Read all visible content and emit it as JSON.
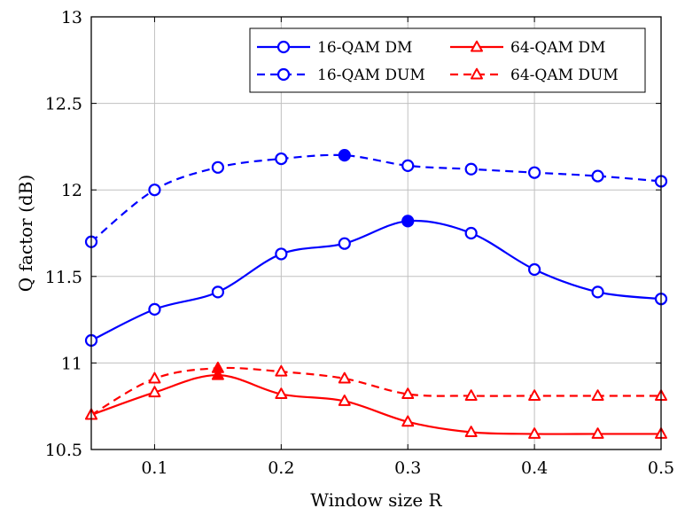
{
  "chart_data": {
    "type": "line",
    "xlabel": "Window size R",
    "ylabel": "Q factor (dB)",
    "xlim": [
      0.05,
      0.5
    ],
    "ylim": [
      10.5,
      13
    ],
    "x_ticks": [
      "0.1",
      "0.2",
      "0.3",
      "0.4",
      "0.5"
    ],
    "y_ticks": [
      "10.5",
      "11",
      "11.5",
      "12",
      "12.5",
      "13"
    ],
    "grid": true,
    "legend_position": "top-right",
    "x": [
      0.05,
      0.1,
      0.15,
      0.2,
      0.25,
      0.3,
      0.35,
      0.4,
      0.45,
      0.5
    ],
    "series": [
      {
        "name": "16-QAM DM",
        "color": "#0000ff",
        "marker": "circle",
        "dashed": false,
        "values": [
          11.13,
          11.31,
          11.41,
          11.63,
          11.69,
          11.82,
          11.75,
          11.54,
          11.41,
          11.37
        ],
        "highlight_index": 5
      },
      {
        "name": "64-QAM DM",
        "color": "#ff0000",
        "marker": "triangle",
        "dashed": false,
        "values": [
          10.7,
          10.83,
          10.93,
          10.82,
          10.78,
          10.66,
          10.6,
          10.59,
          10.59,
          10.59
        ],
        "highlight_index": 2
      },
      {
        "name": "16-QAM DUM",
        "color": "#0000ff",
        "marker": "circle",
        "dashed": true,
        "values": [
          11.7,
          12.0,
          12.13,
          12.18,
          12.2,
          12.14,
          12.12,
          12.1,
          12.08,
          12.05
        ],
        "highlight_index": 4
      },
      {
        "name": "64-QAM DUM",
        "color": "#ff0000",
        "marker": "triangle",
        "dashed": true,
        "values": [
          10.7,
          10.91,
          10.97,
          10.95,
          10.91,
          10.82,
          10.81,
          10.81,
          10.81,
          10.81
        ],
        "highlight_index": 2
      }
    ]
  }
}
